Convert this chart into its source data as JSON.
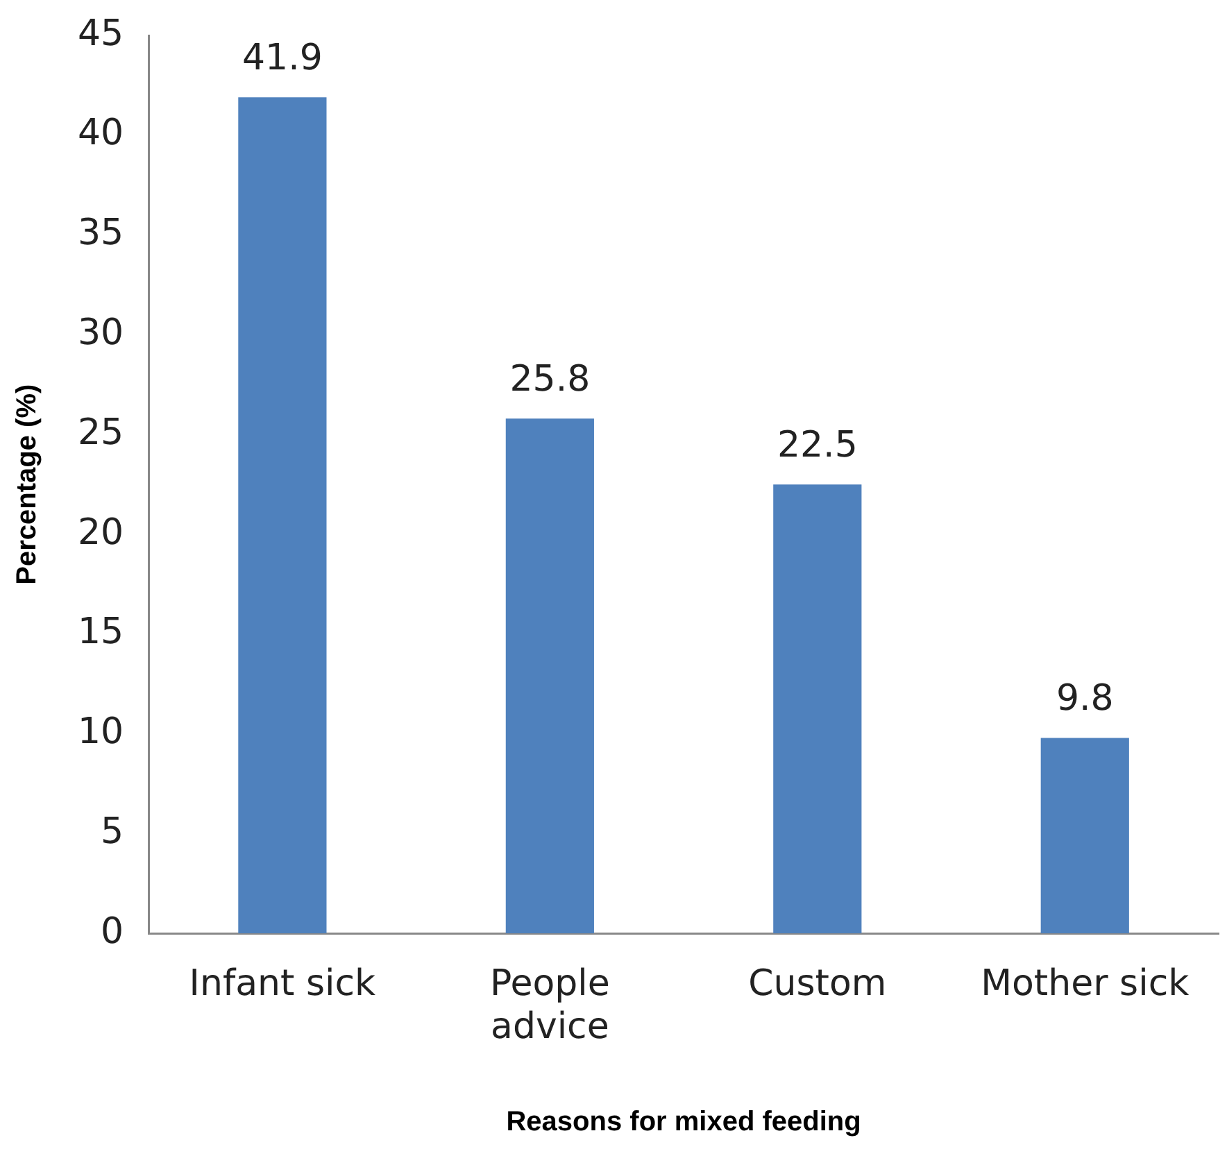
{
  "chart_data": {
    "type": "bar",
    "xlabel": "Reasons for mixed feeding",
    "ylabel": "Percentage (%)",
    "categories": [
      "Infant sick",
      "People advice",
      "Custom",
      "Mother sick"
    ],
    "values": [
      41.9,
      25.8,
      22.5,
      9.8
    ],
    "color": "#4f81bd",
    "ylim": [
      0,
      45
    ],
    "yticks": [
      0,
      5,
      10,
      15,
      20,
      25,
      30,
      35,
      40,
      45
    ],
    "grid": false,
    "legend": false,
    "data_labels": true
  }
}
